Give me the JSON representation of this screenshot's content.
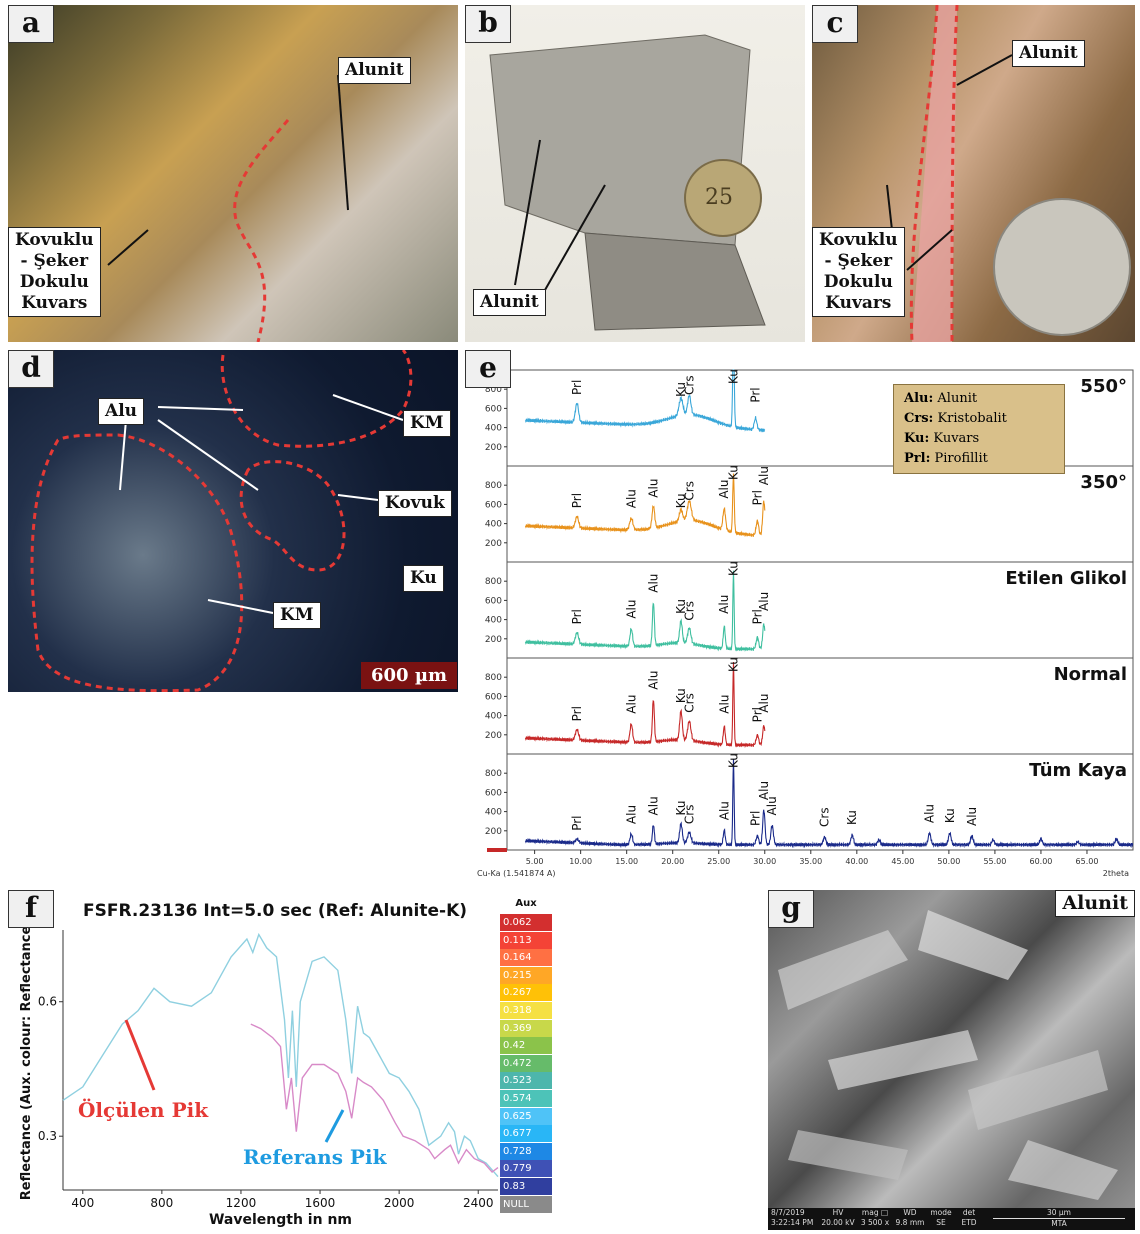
{
  "panels": {
    "a": {
      "label": "a",
      "callouts": {
        "alunit": "Alunit",
        "kovuklu": [
          "Kovuklu",
          "- Şeker",
          "Dokulu",
          "Kuvars"
        ]
      }
    },
    "b": {
      "label": "b",
      "callouts": {
        "alunit": "Alunit"
      },
      "coin_value": "25"
    },
    "c": {
      "label": "c",
      "callouts": {
        "alunit": "Alunit",
        "kovuklu": [
          "Kovuklu",
          "- Şeker",
          "Dokulu",
          "Kuvars"
        ]
      }
    },
    "d": {
      "label": "d",
      "callouts": {
        "alu": "Alu",
        "km_top": "KM",
        "kovuk": "Kovuk",
        "ku": "Ku",
        "km_bottom": "KM"
      },
      "scalebar": "600 µm"
    },
    "e": {
      "label": "e"
    },
    "f": {
      "label": "f"
    },
    "g": {
      "label": "g",
      "title": "Alunit",
      "sem_bar": {
        "date": "8/7/2019",
        "time": "3:22:14 PM",
        "hv": "HV",
        "hv_val": "20.00 kV",
        "mag": "mag □",
        "mag_val": "3 500 x",
        "wd": "WD",
        "wd_val": "9.8 mm",
        "mode": "mode",
        "mode_val": "SE",
        "det": "det",
        "det_val": "ETD",
        "scale": "30 µm",
        "inst": "MTA"
      }
    }
  },
  "chart_data": [
    {
      "type": "line",
      "panel": "e",
      "xlabel": "2theta",
      "x_axis_note": "Cu-Ka (1.541874 A)",
      "xlim": [
        2,
        70
      ],
      "x_ticks": [
        "5.00",
        "10.00",
        "15.00",
        "20.00",
        "25.00",
        "30.00",
        "35.00",
        "40.00",
        "45.00",
        "50.00",
        "55.00",
        "60.00",
        "65.00"
      ],
      "y_ticks": [
        "200",
        "400",
        "600",
        "800"
      ],
      "ylim": [
        0,
        1000
      ],
      "legend": [
        {
          "abbr": "Alu:",
          "name": "Alunit"
        },
        {
          "abbr": "Crs:",
          "name": "Kristobalit"
        },
        {
          "abbr": "Ku:",
          "name": "Kuvars"
        },
        {
          "abbr": "Prl:",
          "name": "Pirofillit"
        }
      ],
      "series": [
        {
          "name": "550°",
          "color": "#3aa7d9",
          "xmax": 30,
          "baseline": 480,
          "peaks": [
            [
              9.6,
              200,
              0.25
            ],
            [
              20.9,
              180,
              0.3
            ],
            [
              21.8,
              200,
              0.25
            ],
            [
              26.6,
              900,
              0.12
            ],
            [
              29.0,
              120,
              0.2
            ]
          ],
          "hump": [
            22,
            130,
            3.5
          ],
          "labels": [
            [
              "Prl",
              9.6
            ],
            [
              "Ku",
              20.9
            ],
            [
              "Crs",
              21.8
            ],
            [
              "Ku",
              26.6
            ],
            [
              "Prl",
              29.0
            ]
          ]
        },
        {
          "name": "350°",
          "color": "#e8921c",
          "xmax": 30,
          "baseline": 380,
          "peaks": [
            [
              9.6,
              120,
              0.25
            ],
            [
              15.5,
              120,
              0.25
            ],
            [
              17.9,
              230,
              0.2
            ],
            [
              20.9,
              120,
              0.25
            ],
            [
              21.8,
              200,
              0.3
            ],
            [
              25.6,
              220,
              0.2
            ],
            [
              26.6,
              600,
              0.12
            ],
            [
              29.2,
              150,
              0.2
            ],
            [
              29.9,
              360,
              0.18
            ]
          ],
          "hump": [
            22,
            130,
            3.5
          ],
          "labels": [
            [
              "Prl",
              9.6
            ],
            [
              "Alu",
              15.5
            ],
            [
              "Alu",
              17.9
            ],
            [
              "Ku",
              20.9
            ],
            [
              "Crs",
              21.8
            ],
            [
              "Alu",
              25.6
            ],
            [
              "Ku",
              26.6
            ],
            [
              "Prl",
              29.2
            ],
            [
              "Alu",
              29.9
            ]
          ]
        },
        {
          "name": "Etilen Glikol",
          "color": "#3fbf9f",
          "xmax": 30,
          "baseline": 170,
          "peaks": [
            [
              9.6,
              120,
              0.25
            ],
            [
              15.5,
              180,
              0.2
            ],
            [
              17.9,
              450,
              0.15
            ],
            [
              20.9,
              230,
              0.2
            ],
            [
              21.8,
              160,
              0.25
            ],
            [
              25.6,
              230,
              0.15
            ],
            [
              26.6,
              800,
              0.1
            ],
            [
              29.2,
              120,
              0.2
            ],
            [
              29.9,
              260,
              0.18
            ]
          ],
          "hump": [
            21,
            60,
            3
          ],
          "labels": [
            [
              "Prl",
              9.6
            ],
            [
              "Alu",
              15.5
            ],
            [
              "Alu",
              17.9
            ],
            [
              "Ku",
              20.9
            ],
            [
              "Crs",
              21.8
            ],
            [
              "Alu",
              25.6
            ],
            [
              "Ku",
              26.6
            ],
            [
              "Prl",
              29.2
            ],
            [
              "Alu",
              29.9
            ]
          ]
        },
        {
          "name": "Normal",
          "color": "#c62828",
          "xmax": 30,
          "baseline": 170,
          "peaks": [
            [
              9.6,
              110,
              0.25
            ],
            [
              15.5,
              190,
              0.2
            ],
            [
              17.9,
              440,
              0.15
            ],
            [
              20.9,
              300,
              0.2
            ],
            [
              21.8,
              200,
              0.25
            ],
            [
              25.6,
              190,
              0.15
            ],
            [
              26.6,
              850,
              0.1
            ],
            [
              29.2,
              100,
              0.2
            ],
            [
              29.9,
              200,
              0.18
            ]
          ],
          "hump": [
            21,
            50,
            3
          ],
          "labels": [
            [
              "Prl",
              9.6
            ],
            [
              "Alu",
              15.5
            ],
            [
              "Alu",
              17.9
            ],
            [
              "Ku",
              20.9
            ],
            [
              "Crs",
              21.8
            ],
            [
              "Alu",
              25.6
            ],
            [
              "Ku",
              26.6
            ],
            [
              "Prl",
              29.2
            ],
            [
              "Alu",
              29.9
            ]
          ]
        },
        {
          "name": "Tüm Kaya",
          "color": "#1a2a8a",
          "xmax": 70,
          "baseline": 100,
          "peaks": [
            [
              9.6,
              40,
              0.25
            ],
            [
              15.5,
              110,
              0.2
            ],
            [
              17.9,
              200,
              0.15
            ],
            [
              20.9,
              200,
              0.2
            ],
            [
              21.8,
              110,
              0.25
            ],
            [
              25.6,
              150,
              0.15
            ],
            [
              26.6,
              880,
              0.1
            ],
            [
              29.2,
              90,
              0.2
            ],
            [
              29.9,
              360,
              0.18
            ],
            [
              30.8,
              200,
              0.2
            ],
            [
              36.5,
              80,
              0.2
            ],
            [
              39.5,
              100,
              0.2
            ],
            [
              42.4,
              50,
              0.2
            ],
            [
              47.9,
              120,
              0.2
            ],
            [
              50.1,
              120,
              0.2
            ],
            [
              52.5,
              90,
              0.2
            ],
            [
              54.8,
              50,
              0.2
            ],
            [
              60.0,
              60,
              0.2
            ],
            [
              64.0,
              30,
              0.2
            ],
            [
              68.2,
              60,
              0.2
            ]
          ],
          "hump": [
            21,
            20,
            3
          ],
          "labels": [
            [
              "Prl",
              9.6
            ],
            [
              "Alu",
              15.5
            ],
            [
              "Alu",
              17.9
            ],
            [
              "Ku",
              20.9
            ],
            [
              "Crs",
              21.8
            ],
            [
              "Alu",
              25.6
            ],
            [
              "Ku",
              26.6
            ],
            [
              "Prl",
              29.0
            ],
            [
              "Alu",
              29.9
            ],
            [
              "Alu",
              30.8
            ],
            [
              "Crs",
              36.5
            ],
            [
              "Ku",
              39.5
            ],
            [
              "Alu",
              47.9
            ],
            [
              "Ku",
              50.1
            ],
            [
              "Alu",
              52.5
            ]
          ]
        }
      ]
    },
    {
      "type": "line",
      "panel": "f",
      "title": "FSFR.23136 Int=5.0 sec  (Ref: Alunite-K)",
      "xlabel": "Wavelength in nm",
      "ylabel": "Reflectance  (Aux. colour: Reflectance)",
      "xlim": [
        300,
        2500
      ],
      "ylim": [
        0.18,
        0.76
      ],
      "x_ticks": [
        400,
        800,
        1200,
        1600,
        2000,
        2400
      ],
      "y_ticks": [
        0.3,
        0.6
      ],
      "annotations": {
        "measured": "Ölçülen Pik",
        "reference": "Referans Pik"
      },
      "series": [
        {
          "name": "measured",
          "color": "#8fd0e0",
          "points": [
            [
              300,
              0.38
            ],
            [
              400,
              0.41
            ],
            [
              500,
              0.48
            ],
            [
              600,
              0.55
            ],
            [
              680,
              0.58
            ],
            [
              760,
              0.63
            ],
            [
              840,
              0.6
            ],
            [
              950,
              0.59
            ],
            [
              1050,
              0.62
            ],
            [
              1150,
              0.7
            ],
            [
              1230,
              0.74
            ],
            [
              1260,
              0.71
            ],
            [
              1290,
              0.75
            ],
            [
              1330,
              0.72
            ],
            [
              1380,
              0.7
            ],
            [
              1420,
              0.56
            ],
            [
              1440,
              0.43
            ],
            [
              1460,
              0.58
            ],
            [
              1480,
              0.41
            ],
            [
              1500,
              0.6
            ],
            [
              1560,
              0.69
            ],
            [
              1620,
              0.7
            ],
            [
              1690,
              0.67
            ],
            [
              1730,
              0.56
            ],
            [
              1760,
              0.44
            ],
            [
              1790,
              0.59
            ],
            [
              1820,
              0.53
            ],
            [
              1850,
              0.52
            ],
            [
              1900,
              0.48
            ],
            [
              1950,
              0.44
            ],
            [
              2000,
              0.43
            ],
            [
              2050,
              0.4
            ],
            [
              2100,
              0.36
            ],
            [
              2150,
              0.28
            ],
            [
              2180,
              0.29
            ],
            [
              2210,
              0.3
            ],
            [
              2250,
              0.33
            ],
            [
              2280,
              0.31
            ],
            [
              2300,
              0.26
            ],
            [
              2330,
              0.3
            ],
            [
              2360,
              0.29
            ],
            [
              2400,
              0.25
            ],
            [
              2440,
              0.24
            ],
            [
              2480,
              0.22
            ],
            [
              2500,
              0.21
            ]
          ]
        },
        {
          "name": "reference",
          "color": "#d88ac8",
          "points": [
            [
              1250,
              0.55
            ],
            [
              1300,
              0.54
            ],
            [
              1360,
              0.52
            ],
            [
              1400,
              0.5
            ],
            [
              1430,
              0.36
            ],
            [
              1455,
              0.43
            ],
            [
              1480,
              0.31
            ],
            [
              1510,
              0.43
            ],
            [
              1560,
              0.46
            ],
            [
              1620,
              0.46
            ],
            [
              1690,
              0.44
            ],
            [
              1730,
              0.4
            ],
            [
              1760,
              0.34
            ],
            [
              1790,
              0.43
            ],
            [
              1820,
              0.42
            ],
            [
              1860,
              0.41
            ],
            [
              1920,
              0.38
            ],
            [
              1980,
              0.33
            ],
            [
              2020,
              0.3
            ],
            [
              2080,
              0.29
            ],
            [
              2150,
              0.27
            ],
            [
              2180,
              0.25
            ],
            [
              2230,
              0.27
            ],
            [
              2260,
              0.28
            ],
            [
              2300,
              0.24
            ],
            [
              2340,
              0.27
            ],
            [
              2380,
              0.25
            ],
            [
              2430,
              0.24
            ],
            [
              2470,
              0.22
            ],
            [
              2500,
              0.23
            ]
          ]
        }
      ],
      "colorbar": {
        "title": "Aux",
        "entries": [
          {
            "v": "0.062",
            "c": "#d32f2f"
          },
          {
            "v": "0.113",
            "c": "#f44336"
          },
          {
            "v": "0.164",
            "c": "#ff7043"
          },
          {
            "v": "0.215",
            "c": "#ffa726"
          },
          {
            "v": "0.267",
            "c": "#ffc107"
          },
          {
            "v": "0.318",
            "c": "#f5e043"
          },
          {
            "v": "0.369",
            "c": "#c8d84a"
          },
          {
            "v": "0.42",
            "c": "#8bc34a"
          },
          {
            "v": "0.472",
            "c": "#66bb6a"
          },
          {
            "v": "0.523",
            "c": "#4db6ac"
          },
          {
            "v": "0.574",
            "c": "#4dc3b8"
          },
          {
            "v": "0.625",
            "c": "#4fc3f7"
          },
          {
            "v": "0.677",
            "c": "#29b6f6"
          },
          {
            "v": "0.728",
            "c": "#1e88e5"
          },
          {
            "v": "0.779",
            "c": "#3f51b5"
          },
          {
            "v": "0.83",
            "c": "#303f9f"
          },
          {
            "v": "NULL",
            "c": "#8a8a8a"
          }
        ]
      }
    }
  ]
}
